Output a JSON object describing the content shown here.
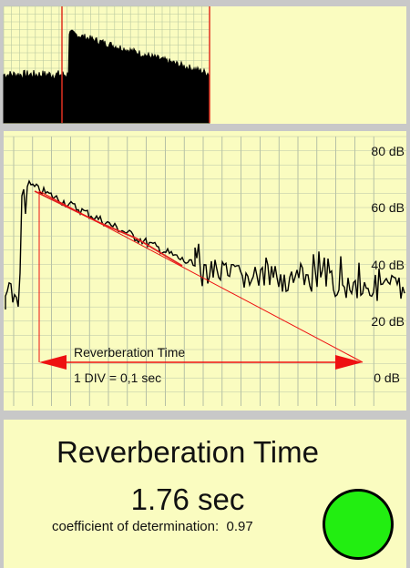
{
  "spectrum": {
    "cursor_color": "#e03020"
  },
  "decay": {
    "db_labels": [
      "80 dB",
      "60 dB",
      "40 dB",
      "20 dB",
      "0 dB"
    ],
    "db_values": [
      80,
      60,
      40,
      20,
      0
    ],
    "arrow_label": "Reverberation Time",
    "div_label": "1 DIV = 0,1 sec",
    "fit_color": "#e02020",
    "arrow_color": "#ee1111"
  },
  "result": {
    "title": "Reverberation Time",
    "value": "1.76 sec",
    "coef_label": "coefficient of determination:",
    "coef_value": "0.97",
    "status_color": "#22ee11"
  }
}
